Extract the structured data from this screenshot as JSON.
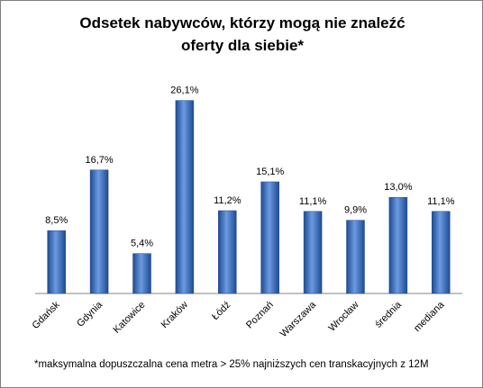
{
  "chart_data": {
    "type": "bar",
    "title_line1": "Odsetek nabywców, którzy mogą nie znaleźć",
    "title_line2": "oferty dla siebie*",
    "categories": [
      "Gdańsk",
      "Gdynia",
      "Katowice",
      "Kraków",
      "Łódź",
      "Poznań",
      "Warszawa",
      "Wrocław",
      "średnia",
      "mediana"
    ],
    "values": [
      8.5,
      16.7,
      5.4,
      26.1,
      11.2,
      15.1,
      11.1,
      9.9,
      13.0,
      11.1
    ],
    "value_labels": [
      "8,5%",
      "16,7%",
      "5,4%",
      "26,1%",
      "11,2%",
      "15,1%",
      "11,1%",
      "9,9%",
      "13,0%",
      "11,1%"
    ],
    "ylim": [
      0,
      28
    ],
    "grid": false,
    "legend": "none",
    "bar_color": "#3a6cc0",
    "bar_color_light": "#6b9be0",
    "bar_color_dark": "#1f4a93"
  },
  "footnote": "*maksymalna  dopuszczalna cena metra  > 25% najniższych cen transkacyjnych z 12M"
}
